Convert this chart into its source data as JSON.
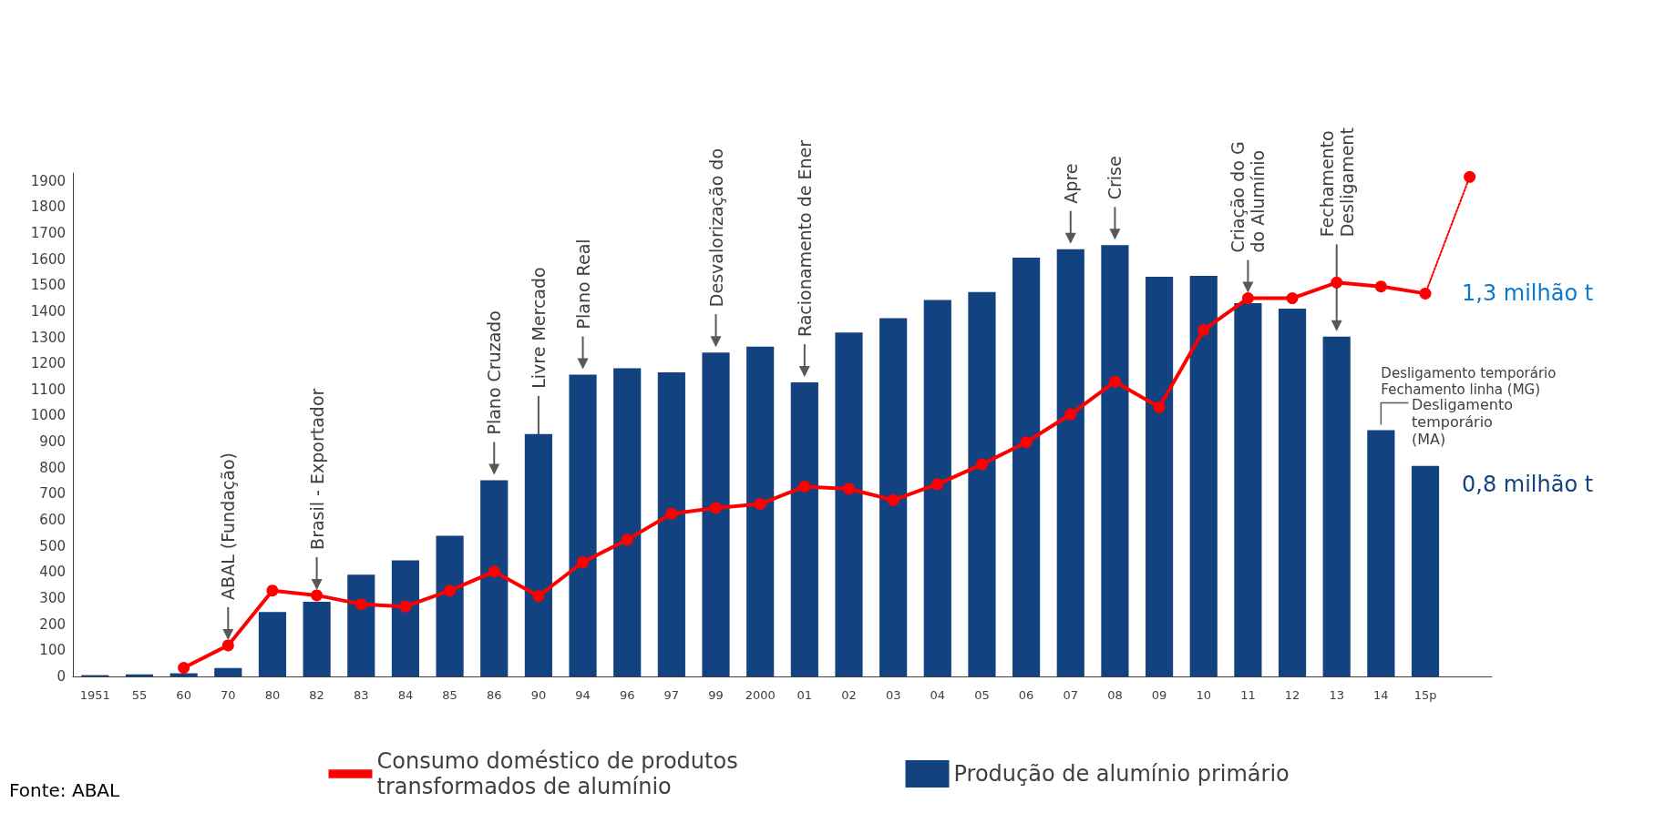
{
  "chart_data": {
    "type": "bar",
    "categories": [
      "1951",
      "55",
      "60",
      "70",
      "80",
      "82",
      "83",
      "84",
      "85",
      "86",
      "90",
      "94",
      "96",
      "97",
      "99",
      "2000",
      "01",
      "02",
      "03",
      "04",
      "05",
      "06",
      "07",
      "08",
      "09",
      "10",
      "11",
      "12",
      "13",
      "14",
      "15p",
      null
    ],
    "series": [
      {
        "name": "Produção de alumínio primário",
        "color": "#12427f",
        "values": [
          5,
          8,
          12,
          32,
          247,
          286,
          390,
          445,
          539,
          752,
          929,
          1157,
          1181,
          1166,
          1242,
          1264,
          1127,
          1318,
          1373,
          1443,
          1474,
          1605,
          1638,
          1653,
          1532,
          1536,
          1431,
          1410,
          1303,
          944,
          807,
          null
        ]
      },
      {
        "name": "Consumo doméstico de produtos transformados de alumínio",
        "type": "line",
        "color": "#ff0000",
        "line_style": "solid",
        "values": [
          null,
          null,
          33,
          119,
          329,
          311,
          277,
          268,
          329,
          402,
          308,
          438,
          524,
          624,
          646,
          661,
          728,
          719,
          676,
          737,
          813,
          898,
          1005,
          1130,
          1032,
          1328,
          1450,
          1450,
          1510,
          1495,
          1468,
          null
        ]
      },
      {
        "type": "line",
        "color": "#ff0000",
        "line_style": "dotted",
        "values": [
          null,
          null,
          null,
          null,
          null,
          null,
          null,
          null,
          null,
          null,
          null,
          null,
          null,
          null,
          null,
          null,
          null,
          null,
          null,
          null,
          null,
          null,
          null,
          null,
          null,
          null,
          null,
          null,
          null,
          null,
          1468,
          1915
        ]
      }
    ],
    "marker": "circle",
    "ylim": [
      0,
      1930
    ],
    "yticks": [
      0,
      100,
      200,
      300,
      400,
      500,
      600,
      700,
      800,
      900,
      1000,
      1100,
      1200,
      1300,
      1400,
      1500,
      1600,
      1700,
      1800,
      1900
    ],
    "grid": false,
    "legend": "bottom",
    "annotations": [
      {
        "text": "ABAL (Fundação)",
        "x": "70",
        "y": 119
      },
      {
        "text": "Brasil - Exportador",
        "x": "82",
        "y": 311
      },
      {
        "text": "Plano Cruzado",
        "x": "86",
        "y": 752
      },
      {
        "text": "Livre Mercado",
        "x": "90",
        "y": 308
      },
      {
        "text": "Plano Real",
        "x": "94",
        "y": 1157
      },
      {
        "text": "Desvalorização do",
        "x": "99",
        "y": 1242
      },
      {
        "text": "Racionamento de Ener",
        "x": "01",
        "y": 1127
      },
      {
        "text": "Apre",
        "x": "07",
        "y": 1638
      },
      {
        "text": "Crise",
        "x": "08",
        "y": 1653
      },
      {
        "text": "Criação do G\ndo Alumínio",
        "x": "11",
        "y": 1450
      },
      {
        "text": "Fechamento\nDesligament",
        "x": "13",
        "y": 1303
      },
      {
        "text": "Desligamento temporário\nFechamento linha (MG)",
        "x": "14",
        "y": 944
      },
      {
        "text": "Desligamento\ntemporário\n(MA)",
        "x": "15p",
        "y": 807
      },
      {
        "text": "1,3 milhão t",
        "x": "15p",
        "y": 1468
      },
      {
        "text": "0,8 milhão t",
        "x": "15p",
        "y": 807
      },
      "Fonte: ABAL"
    ]
  }
}
